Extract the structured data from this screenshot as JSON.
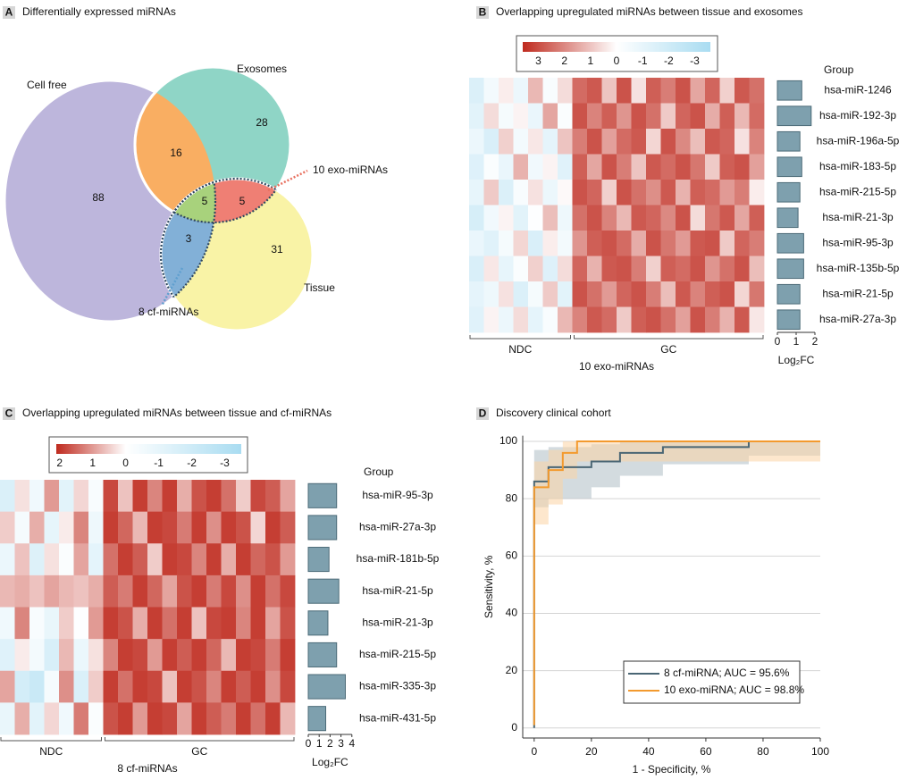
{
  "chart_data": [
    {
      "type": "venn",
      "panel": "A",
      "title": "Differentially expressed miRNAs",
      "sets": [
        "Cell free",
        "Exosomes",
        "Tissue"
      ],
      "values": [
        88,
        28,
        31,
        16,
        5,
        5,
        3
      ],
      "colors": [
        "#bdb6dc",
        "#8fd5c6",
        "#f9f3a6",
        "#f9ae62",
        "#a8d27c",
        "#ef7f74",
        "#82b0d7"
      ],
      "annotations": [
        {
          "text": "10 exo-miRNAs",
          "color": "#e8705f"
        },
        {
          "text": "8 cf-miRNAs",
          "color": "#5f9fcf"
        }
      ]
    },
    {
      "type": "heatmap",
      "panel": "B",
      "title": "Overlapping upregulated miRNAs between tissue and exosomes",
      "colorbar": {
        "lim": [
          -3.6,
          3.6
        ],
        "ticks": [
          3,
          2,
          1,
          0,
          -1,
          -2,
          -3
        ],
        "colors": [
          "#a9dcf1",
          "#ffffff",
          "#bf2a1e"
        ]
      },
      "row_header": "Group",
      "rows": [
        "hsa-miR-1246",
        "hsa-miR-192-3p",
        "hsa-miR-196a-5p",
        "hsa-miR-183-5p",
        "hsa-miR-215-5p",
        "hsa-miR-21-3p",
        "hsa-miR-95-3p",
        "hsa-miR-135b-5p",
        "hsa-miR-21-5p",
        "hsa-miR-27a-3p"
      ],
      "groups": [
        {
          "name": "NDC",
          "values": [
            [
              -1.5,
              -0.5,
              0.3,
              -0.8,
              1.2,
              -0.3,
              0.6
            ],
            [
              -1.2,
              0.6,
              -0.4,
              0.2,
              -0.9,
              1.5,
              -0.2
            ],
            [
              -0.8,
              -1.6,
              0.8,
              -0.5,
              0.4,
              -1.1,
              1.0
            ],
            [
              -1.4,
              -0.2,
              -0.9,
              1.3,
              -0.6,
              0.2,
              -1.3
            ],
            [
              -1.0,
              0.9,
              -1.5,
              -0.3,
              0.5,
              -0.8,
              0.1
            ],
            [
              -1.7,
              -0.6,
              0.2,
              -1.2,
              -0.1,
              1.1,
              -0.7
            ],
            [
              -0.9,
              -1.3,
              -0.4,
              0.7,
              -1.6,
              0.3,
              -0.5
            ],
            [
              -1.6,
              0.4,
              -1.0,
              -0.2,
              0.8,
              -1.4,
              0.6
            ],
            [
              -1.1,
              -0.7,
              0.5,
              -1.5,
              -0.4,
              0.9,
              -1.2
            ],
            [
              -1.3,
              0.2,
              -0.8,
              0.6,
              -1.1,
              -0.3,
              1.2
            ]
          ]
        },
        {
          "name": "GC",
          "values": [
            [
              2.5,
              2.8,
              1.0,
              2.9,
              0.5,
              2.7,
              2.2,
              2.9,
              1.5,
              2.6,
              0.8,
              2.8,
              2.4
            ],
            [
              2.9,
              2.1,
              2.7,
              1.8,
              2.9,
              2.4,
              0.9,
              2.6,
              2.9,
              1.4,
              2.7,
              1.2,
              2.5
            ],
            [
              2.2,
              2.9,
              1.6,
              2.5,
              2.8,
              0.7,
              2.9,
              2.0,
              1.1,
              2.8,
              2.6,
              0.5,
              2.1
            ],
            [
              2.7,
              1.5,
              2.9,
              2.2,
              1.0,
              2.8,
              2.5,
              2.9,
              2.3,
              0.9,
              2.7,
              2.9,
              1.6
            ],
            [
              2.9,
              2.6,
              0.8,
              2.9,
              2.4,
              1.9,
              2.8,
              1.3,
              2.7,
              2.5,
              1.7,
              2.2,
              0.3
            ],
            [
              2.4,
              2.9,
              2.1,
              1.2,
              2.8,
              2.6,
              2.0,
              2.9,
              0.6,
              2.3,
              2.8,
              1.5,
              2.7
            ],
            [
              1.8,
              2.7,
              2.9,
              2.5,
              1.4,
              2.9,
              2.3,
              1.7,
              2.8,
              2.9,
              0.9,
              2.6,
              2.2
            ],
            [
              2.6,
              1.3,
              2.8,
              2.9,
              2.2,
              0.8,
              2.7,
              2.5,
              2.9,
              1.8,
              2.4,
              2.9,
              1.1
            ],
            [
              2.9,
              2.4,
              1.7,
              2.6,
              2.9,
              2.2,
              1.1,
              2.8,
              2.1,
              2.7,
              2.9,
              0.7,
              2.3
            ],
            [
              2.1,
              2.8,
              2.5,
              0.9,
              2.7,
              2.9,
              2.4,
              1.6,
              2.9,
              2.2,
              1.3,
              2.8,
              0.4
            ]
          ]
        }
      ],
      "xlabel": "10 exo-miRNAs",
      "bar_values": [
        1.3,
        1.8,
        1.2,
        1.3,
        1.2,
        1.1,
        1.4,
        1.4,
        1.2,
        1.2
      ],
      "bar_color": "#7ea0ae",
      "bar_xlim": [
        0,
        2
      ],
      "bar_xticks": [
        0,
        1,
        2
      ],
      "bar_xlabel": "Log₂FC"
    },
    {
      "type": "heatmap",
      "panel": "C",
      "title": "Overlapping upregulated miRNAs between tissue and cf-miRNAs",
      "colorbar": {
        "lim": [
          -3.5,
          2.1
        ],
        "ticks": [
          2,
          1,
          0,
          -1,
          -2,
          -3
        ],
        "colors": [
          "#a9dcf1",
          "#ffffff",
          "#bf2a1e"
        ]
      },
      "row_header": "Group",
      "rows": [
        "hsa-miR-95-3p",
        "hsa-miR-27a-3p",
        "hsa-miR-181b-5p",
        "hsa-miR-21-5p",
        "hsa-miR-21-3p",
        "hsa-miR-215-5p",
        "hsa-miR-335-3p",
        "hsa-miR-431-5p"
      ],
      "groups": [
        {
          "name": "NDC",
          "values": [
            [
              -1.5,
              0.3,
              -0.6,
              1.0,
              -1.2,
              0.4,
              -0.3
            ],
            [
              0.5,
              -0.4,
              0.8,
              -1.0,
              0.2,
              1.2,
              -0.7
            ],
            [
              -0.8,
              0.6,
              -1.4,
              0.3,
              -0.2,
              0.9,
              -1.1
            ],
            [
              0.7,
              0.8,
              0.6,
              0.9,
              0.7,
              0.6,
              0.8
            ],
            [
              -0.6,
              1.2,
              -0.3,
              -0.9,
              0.5,
              -0.1,
              1.0
            ],
            [
              -1.3,
              0.2,
              -0.5,
              -1.6,
              0.7,
              -0.8,
              0.3
            ],
            [
              0.9,
              -1.8,
              -2.2,
              -0.4,
              1.1,
              -1.5,
              0.5
            ],
            [
              -0.9,
              0.8,
              -1.2,
              0.4,
              -0.6,
              1.3,
              -0.2
            ]
          ]
        },
        {
          "name": "GC",
          "values": [
            [
              1.8,
              0.6,
              1.9,
              1.2,
              1.9,
              0.8,
              1.7,
              1.9,
              1.4,
              0.5,
              1.8,
              1.6,
              0.9
            ],
            [
              1.9,
              1.5,
              0.7,
              1.9,
              1.8,
              1.3,
              1.9,
              1.1,
              1.9,
              1.7,
              0.4,
              1.9,
              1.6
            ],
            [
              1.4,
              1.9,
              1.6,
              0.5,
              1.9,
              1.8,
              1.2,
              1.9,
              0.8,
              1.9,
              1.5,
              1.7,
              1.0
            ],
            [
              1.6,
              1.3,
              1.9,
              1.5,
              0.9,
              1.7,
              1.9,
              1.3,
              1.8,
              1.1,
              1.9,
              1.4,
              1.8
            ],
            [
              1.9,
              1.7,
              0.8,
              1.9,
              1.4,
              1.9,
              0.6,
              1.8,
              1.9,
              1.2,
              1.9,
              0.9,
              1.7
            ],
            [
              1.2,
              1.9,
              1.8,
              1.0,
              1.9,
              1.6,
              1.9,
              1.5,
              0.7,
              1.9,
              1.8,
              1.3,
              1.9
            ],
            [
              1.9,
              1.4,
              1.9,
              1.8,
              0.6,
              1.9,
              1.7,
              1.2,
              1.9,
              1.6,
              1.9,
              1.1,
              1.8
            ],
            [
              1.7,
              1.9,
              1.0,
              1.9,
              1.8,
              0.9,
              1.9,
              1.6,
              1.3,
              1.9,
              1.4,
              1.9,
              0.7
            ]
          ]
        }
      ],
      "xlabel": "8 cf-miRNAs",
      "bar_values": [
        2.6,
        2.6,
        1.9,
        2.8,
        1.8,
        2.6,
        3.4,
        1.6
      ],
      "bar_color": "#7ea0ae",
      "bar_xlim": [
        0,
        4
      ],
      "bar_xticks": [
        0,
        1,
        2,
        3,
        4
      ],
      "bar_xlabel": "Log₂FC"
    },
    {
      "type": "line",
      "panel": "D",
      "title": "Discovery clinical cohort",
      "xlabel": "1 - Specificity, %",
      "ylabel": "Sensitivity, %",
      "xlim": [
        -4,
        100
      ],
      "ylim": [
        -3.5,
        102
      ],
      "xticks": [
        0,
        20,
        40,
        60,
        80,
        100
      ],
      "yticks": [
        0,
        20,
        40,
        60,
        80,
        100
      ],
      "grid": true,
      "series": [
        {
          "name": "8 cf-miRNA; AUC = 95.6%",
          "color": "#4a6674",
          "band_color": "#aebdc4",
          "x": [
            0,
            0,
            5,
            5,
            20,
            20,
            30,
            30,
            45,
            45,
            75,
            75,
            100
          ],
          "y": [
            0,
            86,
            86,
            91,
            91,
            93,
            93,
            96,
            96,
            98,
            98,
            100,
            100
          ],
          "ci_lower": [
            0,
            77,
            77,
            80,
            80,
            84,
            84,
            88,
            88,
            92,
            92,
            95,
            95
          ],
          "ci_upper": [
            0,
            97,
            97,
            98,
            98,
            99,
            99,
            100,
            100,
            100,
            100,
            100,
            100
          ]
        },
        {
          "name": "10 exo-miRNA; AUC = 98.8%",
          "color": "#f39a2e",
          "band_color": "#fbd3a4",
          "x": [
            0,
            0,
            5,
            5,
            10,
            10,
            15,
            15,
            100
          ],
          "y": [
            1,
            84,
            84,
            90,
            90,
            96,
            96,
            100,
            100
          ],
          "ci_lower": [
            1,
            71,
            71,
            78,
            78,
            87,
            87,
            93,
            93
          ],
          "ci_upper": [
            1,
            93,
            93,
            97,
            97,
            100,
            100,
            100,
            100
          ]
        }
      ]
    }
  ]
}
